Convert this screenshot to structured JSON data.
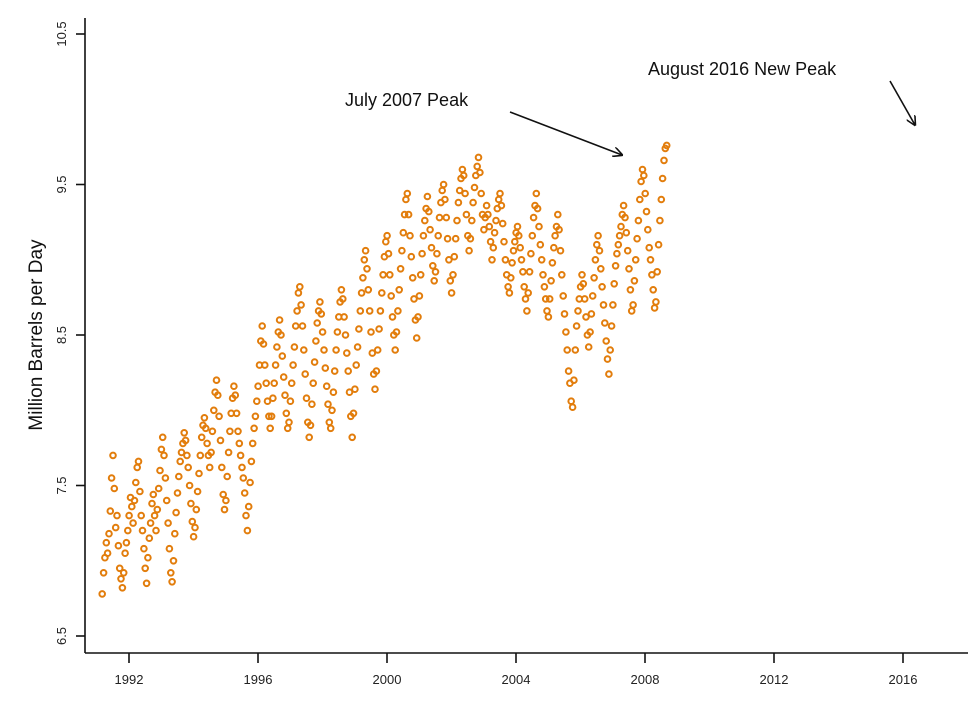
{
  "chart_data": {
    "type": "scatter",
    "title": "",
    "xlabel": "",
    "ylabel": "Million Barrels per Day",
    "xlim": [
      1991.0,
      2017.9
    ],
    "ylim": [
      6.5,
      10.5
    ],
    "x_ticks": [
      "1992",
      "1996",
      "2000",
      "2004",
      "2008",
      "2012",
      "2016"
    ],
    "x_tick_values": [
      1992,
      1996,
      2000,
      2004,
      2008,
      2012,
      2016
    ],
    "y_ticks": [
      "6.5",
      "7.5",
      "8.5",
      "9.5",
      "10.5"
    ],
    "y_tick_values": [
      6.5,
      7.5,
      8.5,
      9.5,
      10.5
    ],
    "grid": false,
    "marker_color": "#E27D0C",
    "marker": "hollow-circle",
    "annotations": [
      {
        "text": "July 2007 Peak",
        "x": 2007.5,
        "y": 9.65
      },
      {
        "text": "August 2016 New Peak",
        "x": 2016.6,
        "y": 9.78
      }
    ],
    "series": [
      {
        "name": "Million Barrels per Day",
        "start_year": 1991.17,
        "step_years": 0.04167,
        "values": [
          6.78,
          6.92,
          7.02,
          7.12,
          7.05,
          7.18,
          7.33,
          7.55,
          7.7,
          7.48,
          7.22,
          7.3,
          7.1,
          6.95,
          6.88,
          6.82,
          6.92,
          7.05,
          7.12,
          7.2,
          7.3,
          7.42,
          7.36,
          7.25,
          7.4,
          7.52,
          7.62,
          7.66,
          7.46,
          7.3,
          7.2,
          7.08,
          6.95,
          6.85,
          7.02,
          7.15,
          7.25,
          7.38,
          7.44,
          7.3,
          7.2,
          7.34,
          7.48,
          7.6,
          7.74,
          7.82,
          7.7,
          7.55,
          7.4,
          7.25,
          7.08,
          6.92,
          6.86,
          7.0,
          7.18,
          7.32,
          7.45,
          7.56,
          7.66,
          7.72,
          7.78,
          7.85,
          7.8,
          7.7,
          7.62,
          7.5,
          7.38,
          7.26,
          7.16,
          7.22,
          7.34,
          7.46,
          7.58,
          7.7,
          7.82,
          7.9,
          7.95,
          7.88,
          7.78,
          7.7,
          7.62,
          7.72,
          7.86,
          8.0,
          8.12,
          8.2,
          8.1,
          7.96,
          7.8,
          7.62,
          7.44,
          7.34,
          7.4,
          7.56,
          7.72,
          7.86,
          7.98,
          8.08,
          8.16,
          8.1,
          7.98,
          7.86,
          7.78,
          7.7,
          7.62,
          7.55,
          7.45,
          7.3,
          7.2,
          7.36,
          7.52,
          7.66,
          7.78,
          7.88,
          7.96,
          8.06,
          8.16,
          8.3,
          8.46,
          8.56,
          8.44,
          8.3,
          8.18,
          8.06,
          7.96,
          7.88,
          7.96,
          8.08,
          8.18,
          8.3,
          8.42,
          8.52,
          8.6,
          8.5,
          8.36,
          8.22,
          8.1,
          7.98,
          7.88,
          7.92,
          8.06,
          8.18,
          8.3,
          8.42,
          8.56,
          8.66,
          8.78,
          8.82,
          8.7,
          8.56,
          8.4,
          8.24,
          8.08,
          7.92,
          7.82,
          7.9,
          8.04,
          8.18,
          8.32,
          8.46,
          8.58,
          8.66,
          8.72,
          8.64,
          8.52,
          8.4,
          8.28,
          8.16,
          8.04,
          7.92,
          7.88,
          8.0,
          8.12,
          8.26,
          8.4,
          8.52,
          8.62,
          8.72,
          8.8,
          8.74,
          8.62,
          8.5,
          8.38,
          8.26,
          8.12,
          7.96,
          7.82,
          7.98,
          8.14,
          8.3,
          8.42,
          8.54,
          8.66,
          8.78,
          8.88,
          9.0,
          9.06,
          8.94,
          8.8,
          8.66,
          8.52,
          8.38,
          8.24,
          8.14,
          8.26,
          8.4,
          8.54,
          8.66,
          8.78,
          8.9,
          9.02,
          9.12,
          9.16,
          9.04,
          8.9,
          8.76,
          8.62,
          8.5,
          8.4,
          8.52,
          8.66,
          8.8,
          8.94,
          9.06,
          9.18,
          9.3,
          9.4,
          9.44,
          9.3,
          9.16,
          9.02,
          8.88,
          8.74,
          8.6,
          8.48,
          8.62,
          8.76,
          8.9,
          9.04,
          9.16,
          9.26,
          9.34,
          9.42,
          9.32,
          9.2,
          9.08,
          8.96,
          8.86,
          8.92,
          9.04,
          9.16,
          9.28,
          9.38,
          9.46,
          9.5,
          9.4,
          9.28,
          9.14,
          9.0,
          8.86,
          8.78,
          8.9,
          9.02,
          9.14,
          9.26,
          9.38,
          9.46,
          9.54,
          9.6,
          9.56,
          9.44,
          9.3,
          9.16,
          9.06,
          9.14,
          9.26,
          9.38,
          9.48,
          9.56,
          9.62,
          9.68,
          9.58,
          9.44,
          9.3,
          9.2,
          9.28,
          9.36,
          9.3,
          9.22,
          9.12,
          9.0,
          9.08,
          9.18,
          9.26,
          9.34,
          9.4,
          9.44,
          9.36,
          9.24,
          9.12,
          9.0,
          8.9,
          8.82,
          8.78,
          8.88,
          8.98,
          9.06,
          9.12,
          9.18,
          9.22,
          9.16,
          9.08,
          9.0,
          8.92,
          8.82,
          8.74,
          8.66,
          8.78,
          8.92,
          9.04,
          9.16,
          9.28,
          9.36,
          9.44,
          9.34,
          9.22,
          9.1,
          9.0,
          8.9,
          8.82,
          8.74,
          8.66,
          8.62,
          8.74,
          8.86,
          8.98,
          9.08,
          9.16,
          9.22,
          9.3,
          9.2,
          9.06,
          8.9,
          8.76,
          8.64,
          8.52,
          8.4,
          8.26,
          8.18,
          8.06,
          8.02,
          8.2,
          8.4,
          8.56,
          8.66,
          8.74,
          8.82,
          8.9,
          8.84,
          8.74,
          8.62,
          8.5,
          8.42,
          8.52,
          8.64,
          8.76,
          8.88,
          9.0,
          9.1,
          9.16,
          9.06,
          8.94,
          8.82,
          8.7,
          8.58,
          8.46,
          8.34,
          8.24,
          8.4,
          8.56,
          8.7,
          8.84,
          8.96,
          9.04,
          9.1,
          9.16,
          9.22,
          9.3,
          9.36,
          9.28,
          9.18,
          9.06,
          8.94,
          8.8,
          8.66,
          8.7,
          8.86,
          9.0,
          9.14,
          9.26,
          9.4,
          9.52,
          9.6,
          9.56,
          9.44,
          9.32,
          9.2,
          9.08,
          9.0,
          8.9,
          8.8,
          8.68,
          8.72,
          8.92,
          9.1,
          9.26,
          9.4,
          9.54,
          9.66,
          9.74,
          9.76
        ]
      }
    ]
  }
}
